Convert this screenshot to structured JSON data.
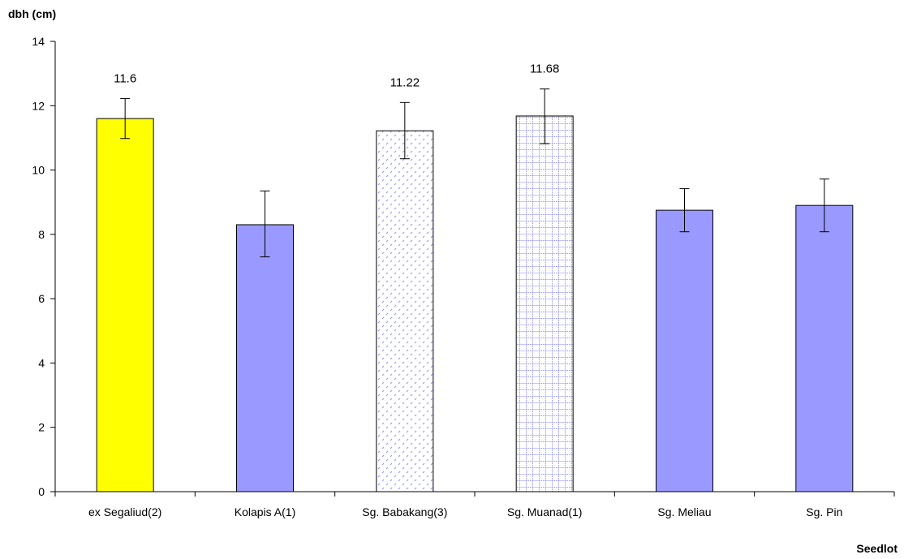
{
  "chart_data": {
    "type": "bar",
    "ylabel": "dbh (cm)",
    "xlabel": "Seedlot",
    "ylim": [
      0,
      14
    ],
    "yticks": [
      0,
      2,
      4,
      6,
      8,
      10,
      12,
      14
    ],
    "grid": false,
    "legend": "none",
    "categories": [
      "ex Segaliud(2)",
      "Kolapis A(1)",
      "Sg. Babakang(3)",
      "Sg. Muanad(1)",
      "Sg. Meliau",
      "Sg. Pin"
    ],
    "values": [
      11.6,
      8.3,
      11.22,
      11.68,
      8.75,
      8.9
    ],
    "error_low": [
      10.98,
      7.3,
      10.35,
      10.82,
      8.08,
      8.08
    ],
    "error_high": [
      12.22,
      9.35,
      12.1,
      12.52,
      9.42,
      9.72
    ],
    "data_labels": [
      "11.6",
      "",
      "11.22",
      "11.68",
      "",
      ""
    ],
    "bar_styles": [
      "solid-yellow",
      "solid-periwinkle",
      "dot-pattern",
      "grid-pattern",
      "solid-periwinkle",
      "solid-periwinkle"
    ],
    "colors": {
      "yellow": "#FFFF00",
      "periwinkle": "#9999FF",
      "pattern_ink": "#9999FF",
      "outline": "#000000"
    }
  }
}
